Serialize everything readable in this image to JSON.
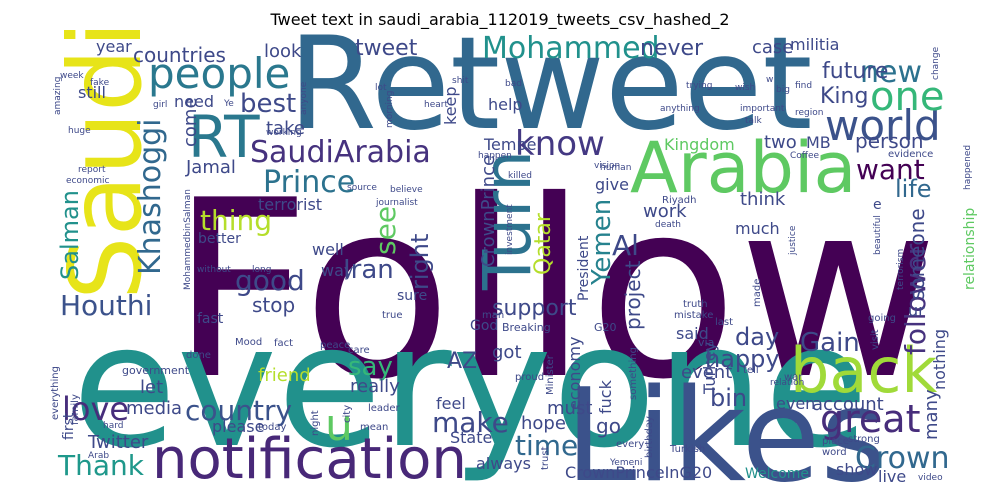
{
  "title": "Tweet text in saudi_arabia_112019_tweets_csv_hashed_2",
  "palette": [
    "#440154",
    "#3b528b",
    "#21918c",
    "#5ec962",
    "#fde725"
  ],
  "words": [
    {
      "text": "Follow",
      "color": "#440154"
    },
    {
      "text": "everyone",
      "color": "#21918c"
    },
    {
      "text": "Retweet",
      "color": "#31688e"
    },
    {
      "text": "Likes",
      "color": "#3b528b"
    },
    {
      "text": "Saudi",
      "color": "#e7e419"
    },
    {
      "text": "Arabia",
      "color": "#5ec962"
    },
    {
      "text": "notification",
      "color": "#482878"
    },
    {
      "text": "back",
      "color": "#a0da39"
    },
    {
      "text": "RT",
      "color": "#2a788e"
    },
    {
      "text": "people",
      "color": "#2a788e"
    },
    {
      "text": "Turn",
      "color": "#2c728e"
    },
    {
      "text": "world",
      "color": "#3b528b"
    },
    {
      "text": "one",
      "color": "#35b779"
    },
    {
      "text": "know",
      "color": "#443983"
    },
    {
      "text": "SaudiArabia",
      "color": "#46327e"
    },
    {
      "text": "Prince",
      "color": "#2c728e"
    },
    {
      "text": "Mohammed",
      "color": "#21918c"
    },
    {
      "text": "u",
      "color": "#5ec962"
    },
    {
      "text": "great",
      "color": "#472d7b"
    },
    {
      "text": "Khashoggi",
      "color": "#31688e"
    },
    {
      "text": "Salman",
      "color": "#21918c"
    },
    {
      "text": "Houthi",
      "color": "#3b528b"
    },
    {
      "text": "love",
      "color": "#472d7b"
    },
    {
      "text": "Thank",
      "color": "#1f988b"
    },
    {
      "text": "country",
      "color": "#3b528b"
    },
    {
      "text": "thing",
      "color": "#b5de2b"
    },
    {
      "text": "good",
      "color": "#3e4989"
    },
    {
      "text": "new",
      "color": "#2c728e"
    },
    {
      "text": "Crown",
      "color": "#31688e"
    },
    {
      "text": "Yemen",
      "color": "#26828e"
    },
    {
      "text": "Qatar",
      "color": "#b5de2b"
    },
    {
      "text": "Al",
      "color": "#3e4989"
    },
    {
      "text": "future",
      "color": "#3e4989"
    },
    {
      "text": "King",
      "color": "#3e4989"
    },
    {
      "text": "follower",
      "color": "#46327e"
    },
    {
      "text": "want",
      "color": "#440154"
    },
    {
      "text": "time",
      "color": "#31688e"
    },
    {
      "text": "make",
      "color": "#3e4989"
    },
    {
      "text": "Gain",
      "color": "#3e4989"
    },
    {
      "text": "best",
      "color": "#3e4989"
    },
    {
      "text": "countries",
      "color": "#3e4989"
    },
    {
      "text": "Iran",
      "color": "#3e4989"
    },
    {
      "text": "see",
      "color": "#5ec962"
    },
    {
      "text": "right",
      "color": "#3e4989"
    },
    {
      "text": "life",
      "color": "#31688e"
    },
    {
      "text": "CrownPrinceInG20",
      "color": "#3e4989"
    },
    {
      "text": "say",
      "color": "#35b779"
    },
    {
      "text": "day",
      "color": "#3e4989"
    },
    {
      "text": "happy",
      "color": "#3e4989"
    },
    {
      "text": "bin",
      "color": "#3e4989"
    },
    {
      "text": "never",
      "color": "#3e4989"
    },
    {
      "text": "tweet",
      "color": "#3e4989"
    },
    {
      "text": "support",
      "color": "#3e4989"
    },
    {
      "text": "stop",
      "color": "#3e4989"
    },
    {
      "text": "Twitter",
      "color": "#3e4989"
    },
    {
      "text": "media",
      "color": "#3e4989"
    },
    {
      "text": "Jamal",
      "color": "#3e4989"
    },
    {
      "text": "Tempe",
      "color": "#3e4989"
    },
    {
      "text": "look",
      "color": "#3e4989"
    },
    {
      "text": "take",
      "color": "#3e4989"
    },
    {
      "text": "come",
      "color": "#3e4989"
    },
    {
      "text": "year",
      "color": "#3e4989"
    },
    {
      "text": "still",
      "color": "#3e4989"
    },
    {
      "text": "need",
      "color": "#3e4989"
    },
    {
      "text": "Kingdom",
      "color": "#5ec962"
    },
    {
      "text": "two",
      "color": "#3e4989"
    },
    {
      "text": "MB",
      "color": "#3e4989"
    },
    {
      "text": "person",
      "color": "#3e4989"
    },
    {
      "text": "case",
      "color": "#3e4989"
    },
    {
      "text": "militia",
      "color": "#3e4989"
    },
    {
      "text": "terrorist",
      "color": "#3e4989"
    },
    {
      "text": "better",
      "color": "#3e4989"
    },
    {
      "text": "project",
      "color": "#3e4989"
    },
    {
      "text": "work",
      "color": "#3e4989"
    },
    {
      "text": "give",
      "color": "#3e4989"
    },
    {
      "text": "think",
      "color": "#3e4989"
    },
    {
      "text": "much",
      "color": "#3e4989"
    },
    {
      "text": "someone",
      "color": "#3e4989"
    },
    {
      "text": "relationship",
      "color": "#5ec962"
    },
    {
      "text": "nothing",
      "color": "#3e4989"
    },
    {
      "text": "account",
      "color": "#3e4989"
    },
    {
      "text": "even",
      "color": "#3e4989"
    },
    {
      "text": "many",
      "color": "#3e4989"
    },
    {
      "text": "Turkey",
      "color": "#3e4989"
    },
    {
      "text": "friend",
      "color": "#b5de2b"
    },
    {
      "text": "let",
      "color": "#3e4989"
    },
    {
      "text": "really",
      "color": "#3e4989"
    },
    {
      "text": "AZ",
      "color": "#3e4989"
    },
    {
      "text": "feel",
      "color": "#3e4989"
    },
    {
      "text": "must",
      "color": "#3e4989"
    },
    {
      "text": "hope",
      "color": "#3e4989"
    },
    {
      "text": "go",
      "color": "#3e4989"
    },
    {
      "text": "always",
      "color": "#3e4989"
    },
    {
      "text": "State",
      "color": "#3e4989"
    },
    {
      "text": "please",
      "color": "#3e4989"
    },
    {
      "text": "first",
      "color": "#3e4989"
    },
    {
      "text": "show",
      "color": "#3e4989"
    },
    {
      "text": "live",
      "color": "#3e4989"
    },
    {
      "text": "Welcome",
      "color": "#21918c"
    },
    {
      "text": "said",
      "color": "#3e4989"
    },
    {
      "text": "got",
      "color": "#3e4989"
    },
    {
      "text": "event",
      "color": "#3e4989"
    },
    {
      "text": "economy",
      "color": "#3e4989"
    },
    {
      "text": "fuck",
      "color": "#3e4989"
    },
    {
      "text": "well",
      "color": "#3e4989"
    },
    {
      "text": "way",
      "color": "#3e4989"
    },
    {
      "text": "sure",
      "color": "#3e4989"
    },
    {
      "text": "fast",
      "color": "#3e4989"
    },
    {
      "text": "President",
      "color": "#3e4989"
    },
    {
      "text": "CrownPrince",
      "color": "#3e4989"
    },
    {
      "text": "keep",
      "color": "#3e4989"
    },
    {
      "text": "help",
      "color": "#3e4989"
    },
    {
      "text": "God",
      "color": "#3e4989"
    },
    {
      "text": "ur",
      "color": "#3e4989"
    },
    {
      "text": "e",
      "color": "#3e4989"
    },
    {
      "text": "Breaking",
      "color": "#3e4989"
    },
    {
      "text": "G20",
      "color": "#3e4989"
    },
    {
      "text": "via",
      "color": "#3e4989"
    },
    {
      "text": "Mood",
      "color": "#3e4989"
    },
    {
      "text": "fact",
      "color": "#3e4989"
    },
    {
      "text": "done",
      "color": "#3e4989"
    },
    {
      "text": "government",
      "color": "#3e4989"
    },
    {
      "text": "everything",
      "color": "#3e4989"
    },
    {
      "text": "family",
      "color": "#3e4989"
    },
    {
      "text": "hard",
      "color": "#3e4989"
    },
    {
      "text": "made",
      "color": "#3e4989"
    },
    {
      "text": "today",
      "color": "#3e4989"
    },
    {
      "text": "leader",
      "color": "#3e4989"
    },
    {
      "text": "mean",
      "color": "#3e4989"
    },
    {
      "text": "city",
      "color": "#3e4989"
    },
    {
      "text": "night",
      "color": "#3e4989"
    },
    {
      "text": "peace",
      "color": "#3e4989"
    },
    {
      "text": "true",
      "color": "#3e4989"
    },
    {
      "text": "care",
      "color": "#3e4989"
    },
    {
      "text": "man",
      "color": "#3e4989"
    },
    {
      "text": "proud",
      "color": "#3e4989"
    },
    {
      "text": "Minister",
      "color": "#3e4989"
    },
    {
      "text": "trust",
      "color": "#3e4989"
    },
    {
      "text": "birthday",
      "color": "#3e4989"
    },
    {
      "text": "every",
      "color": "#3e4989"
    },
    {
      "text": "something",
      "color": "#3e4989"
    },
    {
      "text": "Turkish",
      "color": "#3e4989"
    },
    {
      "text": "word",
      "color": "#3e4989"
    },
    {
      "text": "place",
      "color": "#3e4989"
    },
    {
      "text": "strong",
      "color": "#3e4989"
    },
    {
      "text": "war",
      "color": "#3e4989"
    },
    {
      "text": "tell",
      "color": "#3e4989"
    },
    {
      "text": "last",
      "color": "#3e4989"
    },
    {
      "text": "going",
      "color": "#3e4989"
    },
    {
      "text": "visit",
      "color": "#3e4989"
    },
    {
      "text": "relation",
      "color": "#3e4989"
    },
    {
      "text": "video",
      "color": "#3e4989"
    },
    {
      "text": "justice",
      "color": "#3e4989"
    },
    {
      "text": "beautiful",
      "color": "#3e4989"
    },
    {
      "text": "truth",
      "color": "#3e4989"
    },
    {
      "text": "mistake",
      "color": "#3e4989"
    },
    {
      "text": "terrorism",
      "color": "#3e4989"
    },
    {
      "text": "happened",
      "color": "#3e4989"
    },
    {
      "text": "evidence",
      "color": "#3e4989"
    },
    {
      "text": "Coffee",
      "color": "#3e4989"
    },
    {
      "text": "investment",
      "color": "#3e4989"
    },
    {
      "text": "Riyadh",
      "color": "#3e4989"
    },
    {
      "text": "death",
      "color": "#3e4989"
    },
    {
      "text": "killed",
      "color": "#3e4989"
    },
    {
      "text": "human",
      "color": "#3e4989"
    },
    {
      "text": "vision",
      "color": "#3e4989"
    },
    {
      "text": "happen",
      "color": "#3e4989"
    },
    {
      "text": "source",
      "color": "#3e4989"
    },
    {
      "text": "believe",
      "color": "#3e4989"
    },
    {
      "text": "journalist",
      "color": "#3e4989"
    },
    {
      "text": "economic",
      "color": "#3e4989"
    },
    {
      "text": "report",
      "color": "#3e4989"
    },
    {
      "text": "huge",
      "color": "#3e4989"
    },
    {
      "text": "amazing",
      "color": "#3e4989"
    },
    {
      "text": "week",
      "color": "#3e4989"
    },
    {
      "text": "fake",
      "color": "#3e4989"
    },
    {
      "text": "girl",
      "color": "#3e4989"
    },
    {
      "text": "Ye",
      "color": "#3e4989"
    },
    {
      "text": "morning",
      "color": "#3e4989"
    },
    {
      "text": "anyone",
      "color": "#3e4989"
    },
    {
      "text": "working",
      "color": "#3e4989"
    },
    {
      "text": "lot",
      "color": "#3e4989"
    },
    {
      "text": "shit",
      "color": "#3e4989"
    },
    {
      "text": "bad",
      "color": "#3e4989"
    },
    {
      "text": "heart",
      "color": "#3e4989"
    },
    {
      "text": "anything",
      "color": "#3e4989"
    },
    {
      "text": "trying",
      "color": "#3e4989"
    },
    {
      "text": "wish",
      "color": "#3e4989"
    },
    {
      "text": "find",
      "color": "#3e4989"
    },
    {
      "text": "big",
      "color": "#3e4989"
    },
    {
      "text": "w",
      "color": "#3e4989"
    },
    {
      "text": "important",
      "color": "#3e4989"
    },
    {
      "text": "talk",
      "color": "#3e4989"
    },
    {
      "text": "region",
      "color": "#3e4989"
    },
    {
      "text": "change",
      "color": "#3e4989"
    },
    {
      "text": "without",
      "color": "#3e4989"
    },
    {
      "text": "long",
      "color": "#3e4989"
    },
    {
      "text": "MohammedbinSalman",
      "color": "#3e4989"
    },
    {
      "text": "Arab",
      "color": "#3e4989"
    },
    {
      "text": "Yemeni",
      "color": "#3e4989"
    }
  ]
}
